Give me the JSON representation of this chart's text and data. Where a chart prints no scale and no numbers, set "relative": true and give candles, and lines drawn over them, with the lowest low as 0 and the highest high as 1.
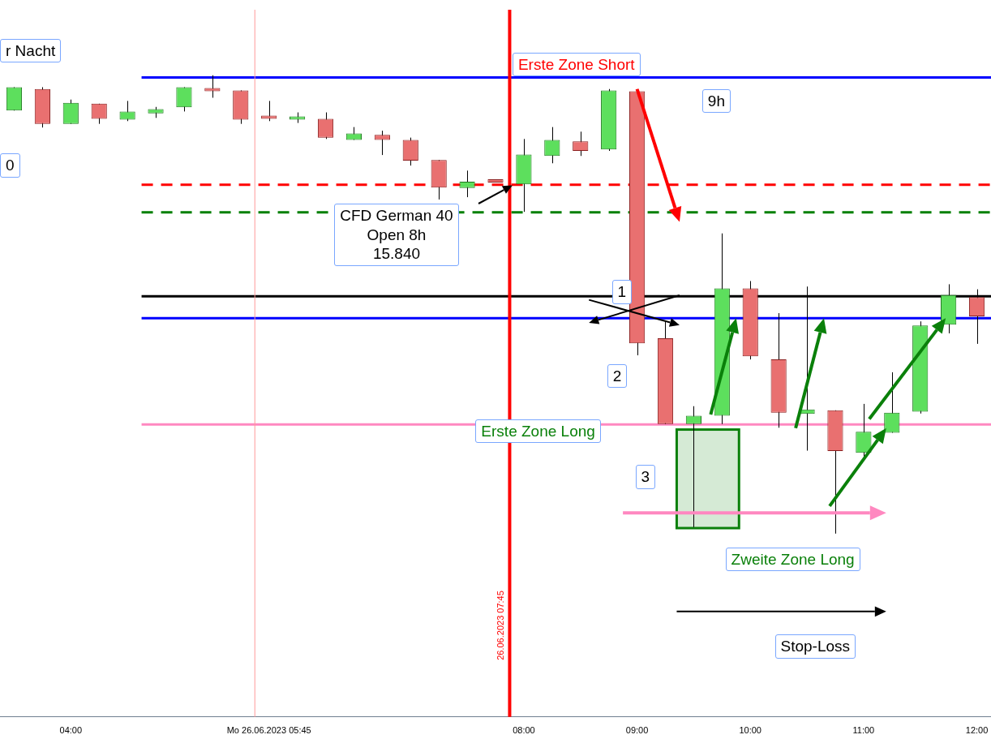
{
  "chart_data": {
    "type": "candlestick",
    "relative": true,
    "categories": [
      null,
      null,
      "04:00",
      null,
      null,
      null,
      null,
      null,
      null,
      "Mo 26.06.2023 05:45",
      null,
      null,
      null,
      null,
      null,
      null,
      null,
      null,
      "08:00",
      null,
      null,
      null,
      "09:00",
      null,
      null,
      null,
      "10:00",
      null,
      null,
      null,
      "11:00",
      null,
      null,
      null,
      "12:00"
    ],
    "ohlc": [
      [
        0.923,
        0.974,
        0.923,
        0.974
      ],
      [
        0.97,
        0.974,
        0.886,
        0.894
      ],
      [
        0.894,
        0.947,
        0.894,
        0.94
      ],
      [
        0.938,
        0.938,
        0.894,
        0.905
      ],
      [
        0.903,
        0.944,
        0.9,
        0.921
      ],
      [
        0.917,
        0.931,
        0.907,
        0.926
      ],
      [
        0.93,
        0.974,
        0.921,
        0.974
      ],
      [
        0.97,
        1.0,
        0.951,
        0.965
      ],
      [
        0.967,
        0.967,
        0.894,
        0.903
      ],
      [
        0.907,
        0.944,
        0.9,
        0.905
      ],
      [
        0.903,
        0.919,
        0.896,
        0.908
      ],
      [
        0.905,
        0.919,
        0.861,
        0.864
      ],
      [
        0.859,
        0.887,
        0.859,
        0.873
      ],
      [
        0.87,
        0.879,
        0.826,
        0.859
      ],
      [
        0.859,
        0.864,
        0.803,
        0.814
      ],
      [
        0.815,
        0.815,
        0.729,
        0.755
      ],
      [
        0.754,
        0.792,
        0.734,
        0.768
      ],
      [
        0.769,
        0.769,
        0.766,
        0.766
      ],
      [
        0.762,
        0.861,
        0.702,
        0.827
      ],
      [
        0.824,
        0.887,
        0.808,
        0.859
      ],
      [
        0.856,
        0.877,
        0.824,
        0.835
      ],
      [
        0.838,
        0.97,
        0.835,
        0.967
      ],
      [
        0.965,
        0.965,
        0.389,
        0.415
      ],
      [
        0.426,
        0.465,
        0.239,
        0.239
      ],
      [
        0.239,
        0.278,
        0.014,
        0.257
      ],
      [
        0.257,
        0.655,
        0.239,
        0.535
      ],
      [
        0.535,
        0.551,
        0.38,
        0.387
      ],
      [
        0.38,
        0.481,
        0.231,
        0.264
      ],
      [
        0.261,
        0.539,
        0.181,
        0.271
      ],
      [
        0.269,
        0.269,
        0,
        0.18
      ],
      [
        0.176,
        0.283,
        0.165,
        0.222
      ],
      [
        0.22,
        0.352,
        0.22,
        0.264
      ],
      [
        0.266,
        0.463,
        0.262,
        0.454
      ],
      [
        0.456,
        0.544,
        0.437,
        0.521
      ],
      [
        0.516,
        0.533,
        0.414,
        0.474
      ]
    ],
    "ref_lines": [
      {
        "axis": "y",
        "value": 0.995,
        "color": "#0000ff",
        "line_style": "solid"
      },
      {
        "axis": "y",
        "value": 0.761,
        "color": "#ff0000",
        "line_style": "dashed"
      },
      {
        "axis": "y",
        "value": 0.701,
        "color": "#008000",
        "line_style": "dashed"
      },
      {
        "axis": "y",
        "value": 0.518,
        "color": "#000000",
        "line_style": "solid"
      },
      {
        "axis": "y",
        "value": 0.47,
        "color": "#0000ff",
        "line_style": "solid"
      },
      {
        "axis": "y",
        "value": 0.238,
        "color": "#ff88c0",
        "line_style": "solid"
      },
      {
        "axis": "x",
        "value": "08:00",
        "label": "26.06.2023 07:45",
        "color": "#ff0000",
        "line_style": "solid"
      },
      {
        "axis": "x",
        "value": "Mo 26.06.2023 05:45",
        "color": "#ff9999",
        "line_style": "solid"
      }
    ],
    "annotations": [
      "r Nacht",
      "Erste Zone Short",
      "9h",
      "0",
      "CFD German 40\nOpen 8h\n15.840",
      {
        "text": "1",
        "x": "09:00",
        "y": 0.49
      },
      "2",
      "3",
      "Erste Zone Long",
      "Zweite Zone Long",
      "Stop-Loss"
    ]
  }
}
